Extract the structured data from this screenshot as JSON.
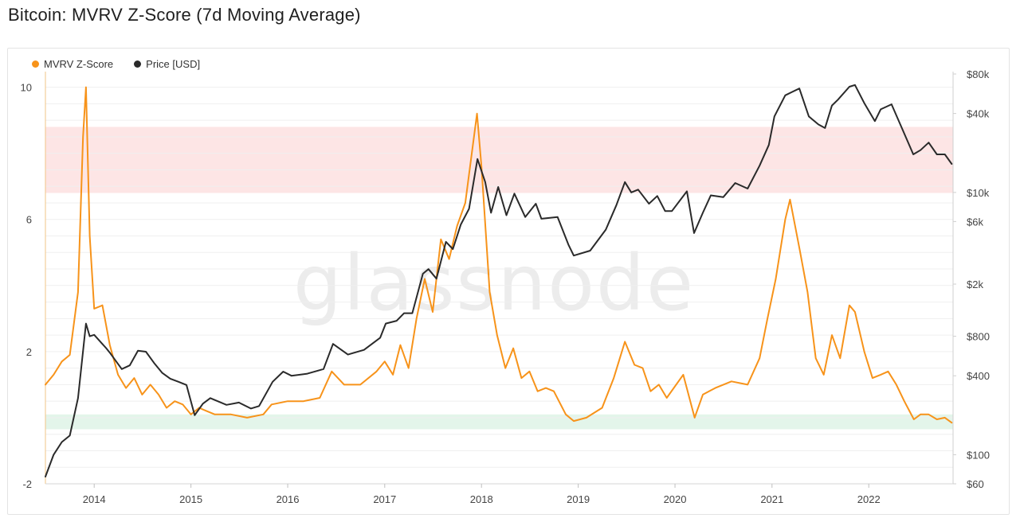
{
  "title": "Bitcoin: MVRV Z-Score (7d Moving Average)",
  "watermark": "glassnode",
  "colors": {
    "zscore": "#f7931a",
    "price": "#2a2a2a",
    "red_band": "#fde5e5",
    "green_band": "#e3f5ea",
    "grid": "#efefef"
  },
  "chart_data": {
    "type": "line",
    "x_ticks": [
      "2014",
      "2015",
      "2016",
      "2017",
      "2018",
      "2019",
      "2020",
      "2021",
      "2022"
    ],
    "y_left_ticks": [
      "-2",
      "2",
      "6",
      "10"
    ],
    "y_right_ticks": [
      "$60",
      "$100",
      "$400",
      "$800",
      "$2k",
      "$6k",
      "$10k",
      "$40k",
      "$80k"
    ],
    "ylim_left": [
      -2,
      10.4
    ],
    "ylim_right_usd": [
      60,
      80000
    ],
    "y_right_scale": "log",
    "xlim": [
      "2013-07-01",
      "2022-11-15"
    ],
    "bands": [
      {
        "axis": "left",
        "from": 6.8,
        "to": 8.8,
        "color": "red"
      },
      {
        "axis": "left",
        "from": 0.1,
        "to": -0.35,
        "color": "green"
      }
    ],
    "series": [
      {
        "name": "MVRV Z-Score",
        "axis": "left",
        "points": [
          [
            "2013-07-01",
            1.0
          ],
          [
            "2013-08-01",
            1.3
          ],
          [
            "2013-09-01",
            1.7
          ],
          [
            "2013-10-01",
            1.9
          ],
          [
            "2013-11-01",
            3.8
          ],
          [
            "2013-11-20",
            8.5
          ],
          [
            "2013-12-01",
            10.0
          ],
          [
            "2013-12-15",
            5.5
          ],
          [
            "2014-01-01",
            3.3
          ],
          [
            "2014-02-01",
            3.4
          ],
          [
            "2014-03-01",
            2.2
          ],
          [
            "2014-04-01",
            1.3
          ],
          [
            "2014-05-01",
            0.9
          ],
          [
            "2014-06-01",
            1.2
          ],
          [
            "2014-07-01",
            0.7
          ],
          [
            "2014-08-01",
            1.0
          ],
          [
            "2014-09-01",
            0.7
          ],
          [
            "2014-10-01",
            0.3
          ],
          [
            "2014-11-01",
            0.5
          ],
          [
            "2014-12-01",
            0.4
          ],
          [
            "2015-01-01",
            0.1
          ],
          [
            "2015-02-01",
            0.3
          ],
          [
            "2015-03-01",
            0.2
          ],
          [
            "2015-04-01",
            0.1
          ],
          [
            "2015-06-01",
            0.1
          ],
          [
            "2015-08-01",
            0.0
          ],
          [
            "2015-10-01",
            0.1
          ],
          [
            "2015-11-01",
            0.4
          ],
          [
            "2016-01-01",
            0.5
          ],
          [
            "2016-03-01",
            0.5
          ],
          [
            "2016-05-01",
            0.6
          ],
          [
            "2016-06-15",
            1.4
          ],
          [
            "2016-08-01",
            1.0
          ],
          [
            "2016-10-01",
            1.0
          ],
          [
            "2016-12-01",
            1.4
          ],
          [
            "2017-01-01",
            1.7
          ],
          [
            "2017-02-01",
            1.3
          ],
          [
            "2017-03-01",
            2.2
          ],
          [
            "2017-04-01",
            1.5
          ],
          [
            "2017-05-01",
            3.0
          ],
          [
            "2017-06-01",
            4.2
          ],
          [
            "2017-07-01",
            3.2
          ],
          [
            "2017-08-01",
            5.4
          ],
          [
            "2017-09-01",
            4.8
          ],
          [
            "2017-10-01",
            5.8
          ],
          [
            "2017-11-01",
            6.5
          ],
          [
            "2017-12-15",
            9.2
          ],
          [
            "2018-01-01",
            7.6
          ],
          [
            "2018-02-01",
            3.8
          ],
          [
            "2018-03-01",
            2.5
          ],
          [
            "2018-04-01",
            1.5
          ],
          [
            "2018-05-01",
            2.1
          ],
          [
            "2018-06-01",
            1.2
          ],
          [
            "2018-07-01",
            1.4
          ],
          [
            "2018-08-01",
            0.8
          ],
          [
            "2018-09-01",
            0.9
          ],
          [
            "2018-10-01",
            0.8
          ],
          [
            "2018-11-15",
            0.1
          ],
          [
            "2018-12-15",
            -0.1
          ],
          [
            "2019-02-01",
            0.0
          ],
          [
            "2019-04-01",
            0.3
          ],
          [
            "2019-05-15",
            1.2
          ],
          [
            "2019-06-26",
            2.3
          ],
          [
            "2019-08-01",
            1.6
          ],
          [
            "2019-09-01",
            1.5
          ],
          [
            "2019-10-01",
            0.8
          ],
          [
            "2019-11-01",
            1.0
          ],
          [
            "2019-12-01",
            0.6
          ],
          [
            "2020-02-01",
            1.3
          ],
          [
            "2020-03-15",
            0.0
          ],
          [
            "2020-04-15",
            0.7
          ],
          [
            "2020-06-01",
            0.9
          ],
          [
            "2020-08-01",
            1.1
          ],
          [
            "2020-10-01",
            1.0
          ],
          [
            "2020-11-15",
            1.8
          ],
          [
            "2020-12-15",
            3.0
          ],
          [
            "2021-01-15",
            4.2
          ],
          [
            "2021-02-20",
            6.0
          ],
          [
            "2021-03-10",
            6.6
          ],
          [
            "2021-04-15",
            5.1
          ],
          [
            "2021-05-15",
            3.8
          ],
          [
            "2021-06-15",
            1.8
          ],
          [
            "2021-07-15",
            1.3
          ],
          [
            "2021-08-15",
            2.5
          ],
          [
            "2021-09-15",
            1.8
          ],
          [
            "2021-10-20",
            3.4
          ],
          [
            "2021-11-10",
            3.2
          ],
          [
            "2021-12-15",
            2.0
          ],
          [
            "2022-01-15",
            1.2
          ],
          [
            "2022-02-15",
            1.3
          ],
          [
            "2022-03-15",
            1.4
          ],
          [
            "2022-04-15",
            1.0
          ],
          [
            "2022-05-15",
            0.5
          ],
          [
            "2022-06-20",
            -0.05
          ],
          [
            "2022-07-15",
            0.1
          ],
          [
            "2022-08-15",
            0.1
          ],
          [
            "2022-09-15",
            -0.05
          ],
          [
            "2022-10-15",
            0.0
          ],
          [
            "2022-11-10",
            -0.15
          ]
        ]
      },
      {
        "name": "Price [USD]",
        "axis": "right",
        "points": [
          [
            "2013-07-01",
            68
          ],
          [
            "2013-08-01",
            100
          ],
          [
            "2013-09-01",
            125
          ],
          [
            "2013-10-01",
            140
          ],
          [
            "2013-11-01",
            270
          ],
          [
            "2013-12-01",
            1000
          ],
          [
            "2013-12-15",
            800
          ],
          [
            "2014-01-01",
            820
          ],
          [
            "2014-02-15",
            650
          ],
          [
            "2014-03-01",
            600
          ],
          [
            "2014-04-15",
            450
          ],
          [
            "2014-05-15",
            480
          ],
          [
            "2014-06-15",
            620
          ],
          [
            "2014-07-15",
            610
          ],
          [
            "2014-08-15",
            500
          ],
          [
            "2014-09-15",
            420
          ],
          [
            "2014-10-15",
            380
          ],
          [
            "2014-11-15",
            360
          ],
          [
            "2014-12-15",
            340
          ],
          [
            "2015-01-15",
            200
          ],
          [
            "2015-02-15",
            245
          ],
          [
            "2015-03-15",
            270
          ],
          [
            "2015-05-15",
            240
          ],
          [
            "2015-07-01",
            250
          ],
          [
            "2015-08-15",
            225
          ],
          [
            "2015-09-15",
            235
          ],
          [
            "2015-11-05",
            360
          ],
          [
            "2015-12-15",
            430
          ],
          [
            "2016-01-15",
            400
          ],
          [
            "2016-03-15",
            415
          ],
          [
            "2016-05-15",
            450
          ],
          [
            "2016-06-20",
            700
          ],
          [
            "2016-08-15",
            580
          ],
          [
            "2016-10-15",
            630
          ],
          [
            "2016-12-15",
            780
          ],
          [
            "2017-01-05",
            1000
          ],
          [
            "2017-02-15",
            1050
          ],
          [
            "2017-03-15",
            1200
          ],
          [
            "2017-04-15",
            1200
          ],
          [
            "2017-05-25",
            2400
          ],
          [
            "2017-06-15",
            2600
          ],
          [
            "2017-07-15",
            2200
          ],
          [
            "2017-08-20",
            4200
          ],
          [
            "2017-09-15",
            3700
          ],
          [
            "2017-10-15",
            5700
          ],
          [
            "2017-11-15",
            7500
          ],
          [
            "2017-12-17",
            18000
          ],
          [
            "2018-01-15",
            12000
          ],
          [
            "2018-02-06",
            7000
          ],
          [
            "2018-03-05",
            11000
          ],
          [
            "2018-04-05",
            6700
          ],
          [
            "2018-05-05",
            9800
          ],
          [
            "2018-06-15",
            6500
          ],
          [
            "2018-07-25",
            8200
          ],
          [
            "2018-08-15",
            6300
          ],
          [
            "2018-10-15",
            6500
          ],
          [
            "2018-11-25",
            4000
          ],
          [
            "2018-12-15",
            3300
          ],
          [
            "2019-02-15",
            3600
          ],
          [
            "2019-04-15",
            5200
          ],
          [
            "2019-05-25",
            8000
          ],
          [
            "2019-06-26",
            12000
          ],
          [
            "2019-07-20",
            10000
          ],
          [
            "2019-08-15",
            10500
          ],
          [
            "2019-09-25",
            8200
          ],
          [
            "2019-10-26",
            9400
          ],
          [
            "2019-11-25",
            7200
          ],
          [
            "2019-12-20",
            7200
          ],
          [
            "2020-02-15",
            10200
          ],
          [
            "2020-03-13",
            4900
          ],
          [
            "2020-04-15",
            7000
          ],
          [
            "2020-05-15",
            9500
          ],
          [
            "2020-07-01",
            9200
          ],
          [
            "2020-08-15",
            11800
          ],
          [
            "2020-10-01",
            10700
          ],
          [
            "2020-11-15",
            16000
          ],
          [
            "2020-12-20",
            23000
          ],
          [
            "2021-01-10",
            38000
          ],
          [
            "2021-02-20",
            55000
          ],
          [
            "2021-03-15",
            58000
          ],
          [
            "2021-04-14",
            62000
          ],
          [
            "2021-05-20",
            38000
          ],
          [
            "2021-06-25",
            33000
          ],
          [
            "2021-07-20",
            31000
          ],
          [
            "2021-08-15",
            46000
          ],
          [
            "2021-09-07",
            51000
          ],
          [
            "2021-10-20",
            64000
          ],
          [
            "2021-11-10",
            66000
          ],
          [
            "2021-12-15",
            48000
          ],
          [
            "2022-01-24",
            35000
          ],
          [
            "2022-02-15",
            43000
          ],
          [
            "2022-03-28",
            47000
          ],
          [
            "2022-05-12",
            29000
          ],
          [
            "2022-06-18",
            19500
          ],
          [
            "2022-07-15",
            21000
          ],
          [
            "2022-08-15",
            24000
          ],
          [
            "2022-09-15",
            19500
          ],
          [
            "2022-10-15",
            19500
          ],
          [
            "2022-11-10",
            16500
          ]
        ]
      }
    ],
    "legend_position": "top-left"
  }
}
